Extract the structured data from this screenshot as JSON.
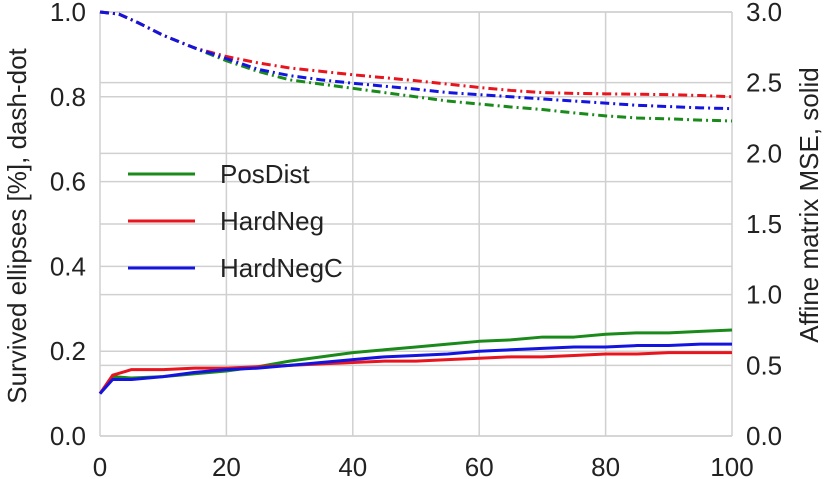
{
  "chart_data": {
    "type": "line",
    "xlabel": "",
    "ylabel_left": "Survived ellipses [%], dash-dot",
    "ylabel_right": "Affine matrix MSE, solid",
    "xlim": [
      0,
      100
    ],
    "ylim_left": [
      0.0,
      1.0
    ],
    "ylim_right": [
      0.0,
      3.0
    ],
    "x_ticks": [
      "0",
      "20",
      "40",
      "60",
      "80",
      "100"
    ],
    "y_ticks_left": [
      "0.0",
      "0.2",
      "0.4",
      "0.6",
      "0.8",
      "1.0"
    ],
    "y_ticks_right": [
      "0.0",
      "0.5",
      "1.0",
      "1.5",
      "2.0",
      "2.5",
      "3.0"
    ],
    "grid": true,
    "legend_position": "center-left",
    "series": [
      {
        "name": "PosDist",
        "color": "#1a8a1a",
        "survived_dashdot": {
          "x": [
            0,
            3,
            6,
            10,
            15,
            20,
            25,
            30,
            35,
            40,
            45,
            50,
            55,
            60,
            65,
            70,
            75,
            80,
            85,
            90,
            95,
            100
          ],
          "y": [
            1.0,
            0.995,
            0.975,
            0.945,
            0.915,
            0.885,
            0.86,
            0.84,
            0.83,
            0.82,
            0.81,
            0.8,
            0.79,
            0.783,
            0.776,
            0.77,
            0.762,
            0.755,
            0.75,
            0.748,
            0.745,
            0.743
          ]
        },
        "mse_solid": {
          "x": [
            0,
            2,
            5,
            10,
            15,
            20,
            25,
            30,
            35,
            40,
            45,
            50,
            55,
            60,
            65,
            70,
            75,
            80,
            85,
            90,
            95,
            100
          ],
          "y": [
            0.3,
            0.42,
            0.41,
            0.42,
            0.44,
            0.46,
            0.49,
            0.53,
            0.56,
            0.59,
            0.61,
            0.63,
            0.65,
            0.67,
            0.68,
            0.7,
            0.7,
            0.72,
            0.73,
            0.73,
            0.74,
            0.75
          ]
        }
      },
      {
        "name": "HardNeg",
        "color": "#e8141e",
        "survived_dashdot": {
          "x": [
            0,
            3,
            6,
            10,
            15,
            20,
            25,
            30,
            35,
            40,
            45,
            50,
            55,
            60,
            65,
            70,
            75,
            80,
            85,
            90,
            95,
            100
          ],
          "y": [
            1.0,
            0.995,
            0.975,
            0.945,
            0.915,
            0.895,
            0.88,
            0.868,
            0.86,
            0.852,
            0.845,
            0.838,
            0.83,
            0.822,
            0.815,
            0.81,
            0.808,
            0.807,
            0.806,
            0.805,
            0.803,
            0.8
          ]
        },
        "mse_solid": {
          "x": [
            0,
            2,
            5,
            10,
            15,
            20,
            25,
            30,
            35,
            40,
            45,
            50,
            55,
            60,
            65,
            70,
            75,
            80,
            85,
            90,
            95,
            100
          ],
          "y": [
            0.3,
            0.43,
            0.47,
            0.47,
            0.48,
            0.48,
            0.49,
            0.5,
            0.51,
            0.52,
            0.53,
            0.53,
            0.54,
            0.55,
            0.56,
            0.56,
            0.57,
            0.58,
            0.58,
            0.59,
            0.59,
            0.59
          ]
        }
      },
      {
        "name": "HardNegC",
        "color": "#1414e0",
        "survived_dashdot": {
          "x": [
            0,
            3,
            6,
            10,
            15,
            20,
            25,
            30,
            35,
            40,
            45,
            50,
            55,
            60,
            65,
            70,
            75,
            80,
            85,
            90,
            95,
            100
          ],
          "y": [
            1.0,
            0.995,
            0.975,
            0.945,
            0.915,
            0.89,
            0.865,
            0.85,
            0.84,
            0.832,
            0.825,
            0.818,
            0.81,
            0.805,
            0.8,
            0.795,
            0.79,
            0.785,
            0.78,
            0.777,
            0.774,
            0.772
          ]
        },
        "mse_solid": {
          "x": [
            0,
            2,
            5,
            10,
            15,
            20,
            25,
            30,
            35,
            40,
            45,
            50,
            55,
            60,
            65,
            70,
            75,
            80,
            85,
            90,
            95,
            100
          ],
          "y": [
            0.3,
            0.4,
            0.4,
            0.42,
            0.45,
            0.47,
            0.48,
            0.5,
            0.52,
            0.54,
            0.56,
            0.57,
            0.58,
            0.6,
            0.61,
            0.62,
            0.63,
            0.63,
            0.64,
            0.64,
            0.65,
            0.65
          ]
        }
      }
    ]
  }
}
